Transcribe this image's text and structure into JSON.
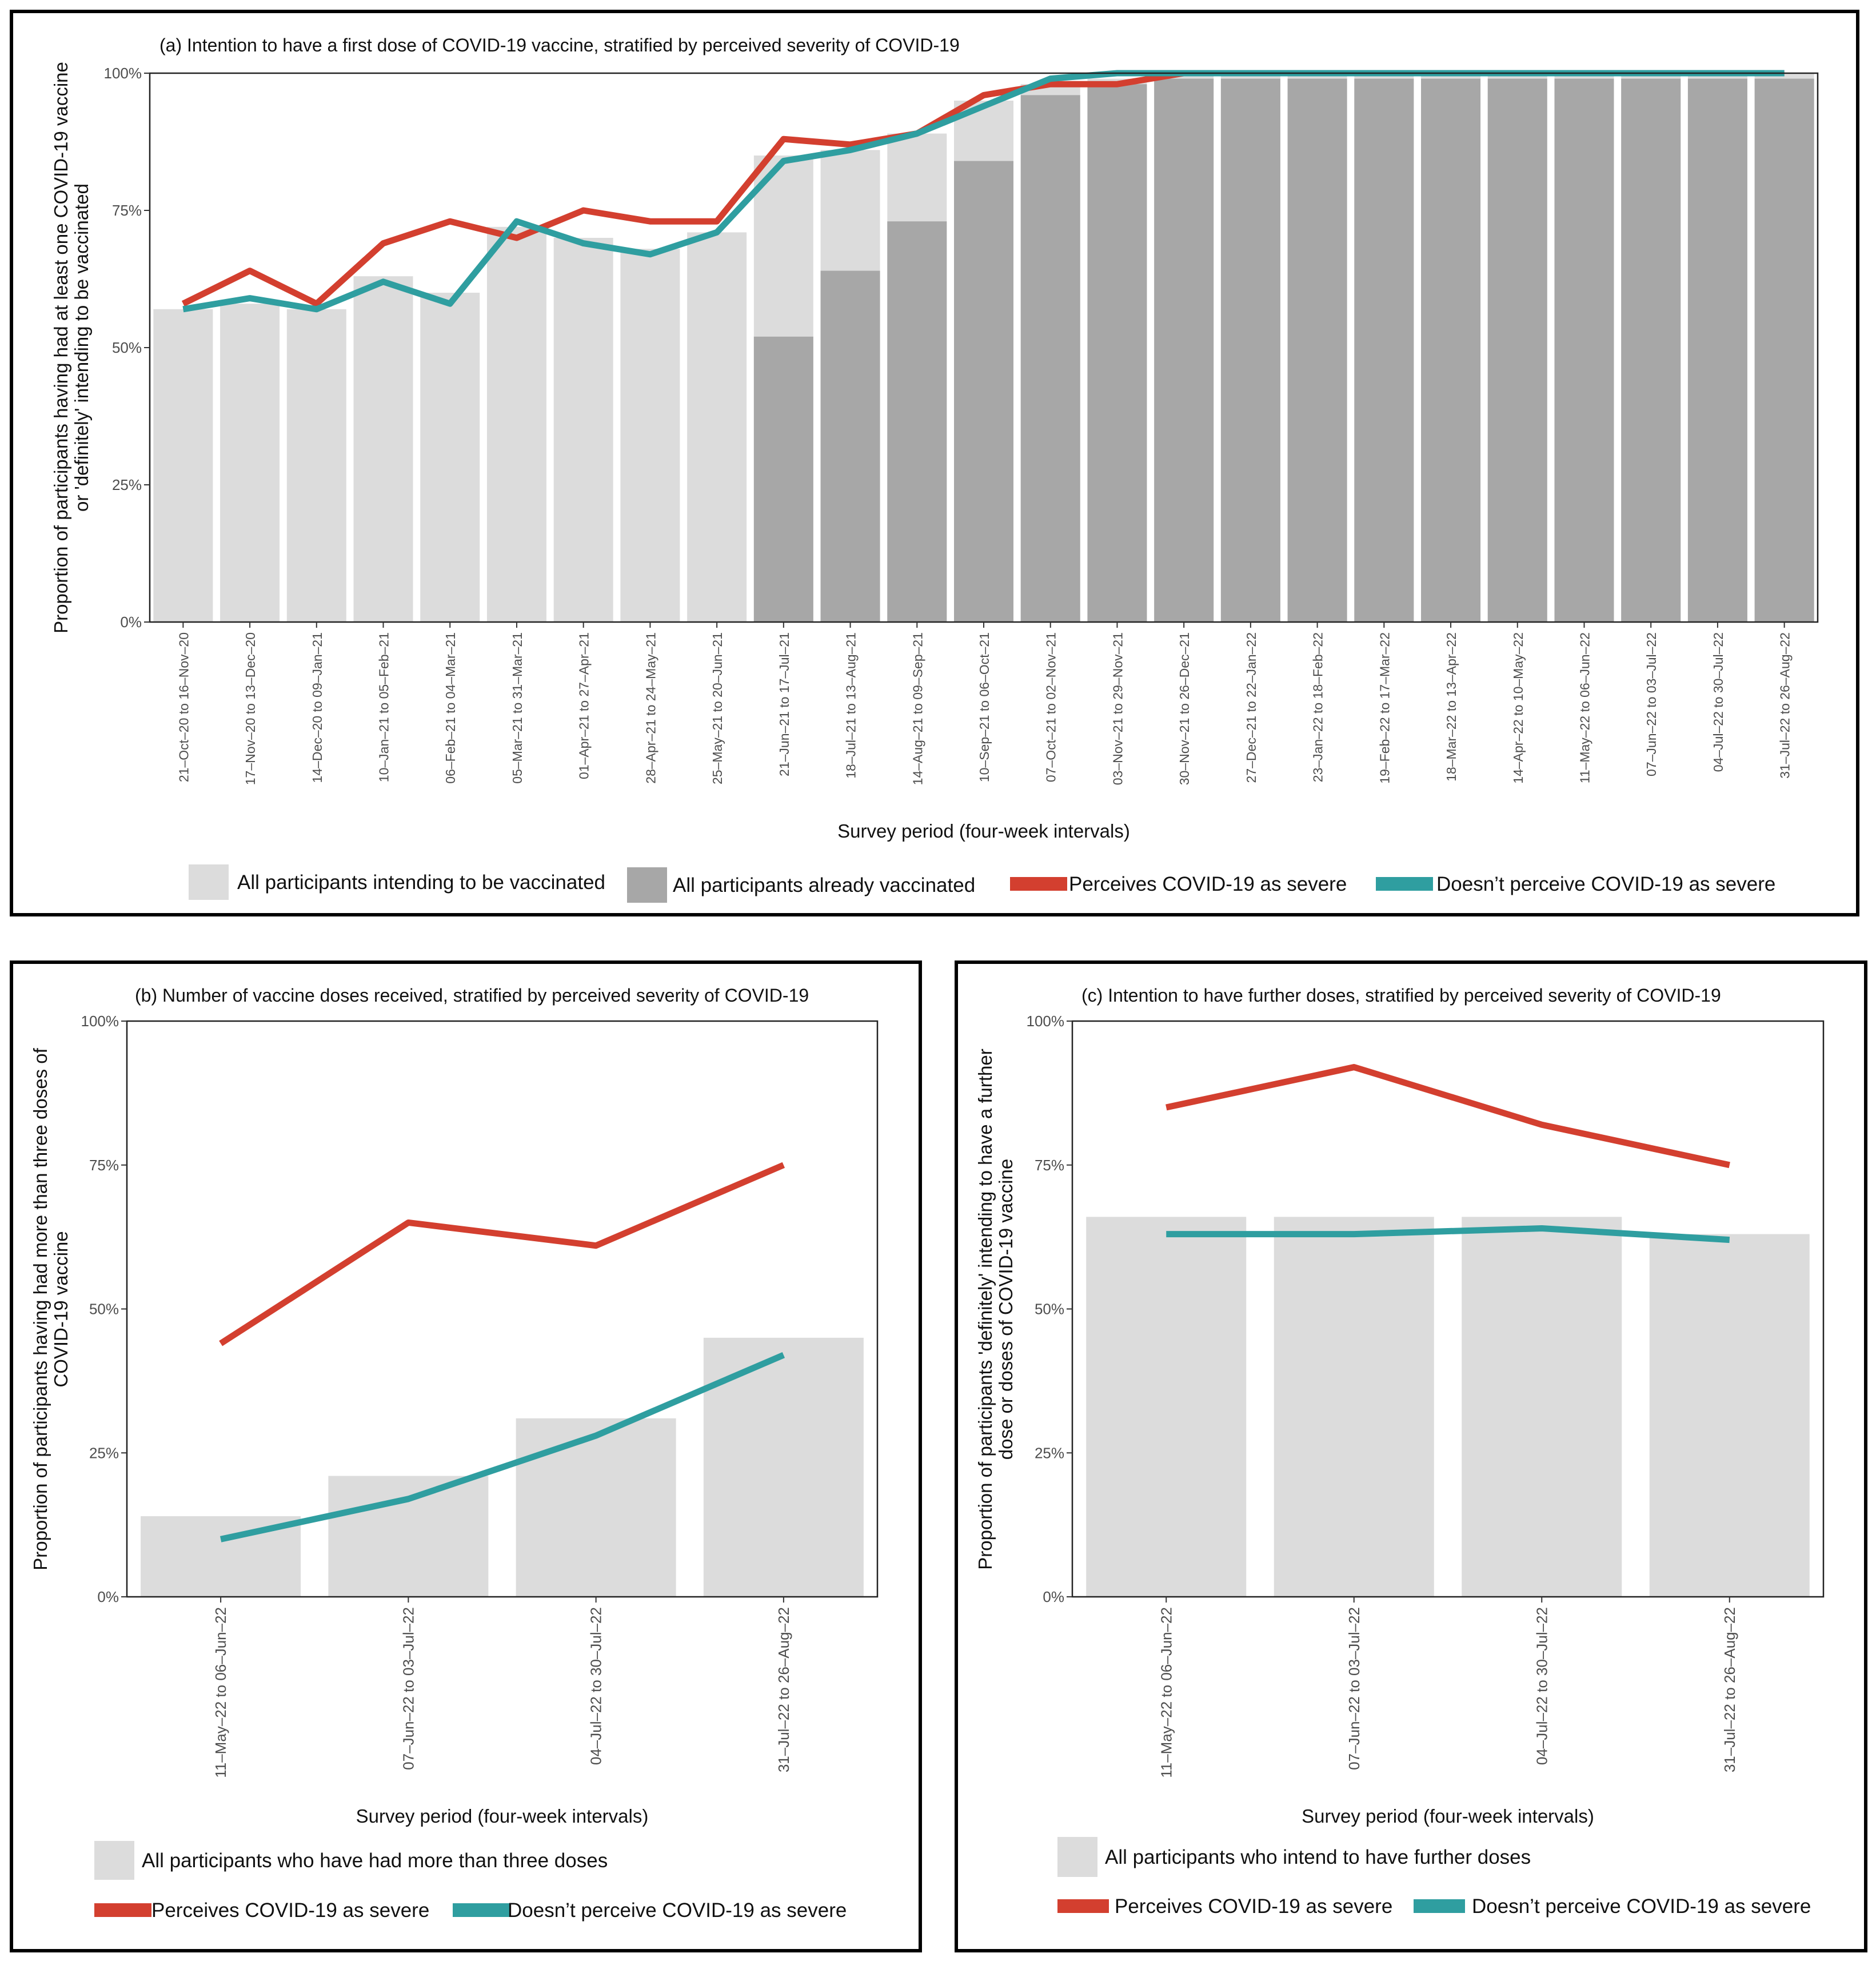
{
  "colors": {
    "severe": "#d33f2f",
    "not_severe": "#2f9ea0",
    "intending": "#dcdcdc",
    "vaccinated": "#a7a7a7",
    "axis": "#333333",
    "tick_text": "#4d4d4d"
  },
  "y_ticks": [
    "0%",
    "25%",
    "50%",
    "75%",
    "100%"
  ],
  "chart_data": [
    {
      "id": "a",
      "type": "bar",
      "title": "(a) Intention to have a first dose of COVID-19 vaccine, stratified by perceived severity of COVID-19",
      "xlabel": "Survey period (four-week intervals)",
      "ylabel": [
        "Proportion of participants having had at least one COVID-19 vaccine",
        "or 'definitely' intending to be vaccinated"
      ],
      "ylim": [
        0,
        100
      ],
      "categories": [
        "21–Oct–20 to 16–Nov–20",
        "17–Nov–20 to 13–Dec–20",
        "14–Dec–20 to 09–Jan–21",
        "10–Jan–21 to 05–Feb–21",
        "06–Feb–21 to 04–Mar–21",
        "05–Mar–21 to 31–Mar–21",
        "01–Apr–21 to 27–Apr–21",
        "28–Apr–21 to 24–May–21",
        "25–May–21 to 20–Jun–21",
        "21–Jun–21 to 17–Jul–21",
        "18–Jul–21 to 13–Aug–21",
        "14–Aug–21 to 09–Sep–21",
        "10–Sep–21 to 06–Oct–21",
        "07–Oct–21 to 02–Nov–21",
        "03–Nov–21 to 29–Nov–21",
        "30–Nov–21 to 26–Dec–21",
        "27–Dec–21 to 22–Jan–22",
        "23–Jan–22 to 18–Feb–22",
        "19–Feb–22 to 17–Mar–22",
        "18–Mar–22 to 13–Apr–22",
        "14–Apr–22 to 10–May–22",
        "11–May–22 to 06–Jun–22",
        "07–Jun–22 to 03–Jul–22",
        "04–Jul–22 to 30–Jul–22",
        "31–Jul–22 to 26–Aug–22"
      ],
      "series": [
        {
          "name": "All participants intending to be vaccinated",
          "kind": "bar",
          "color": "#dcdcdc",
          "values": [
            57,
            58,
            57,
            63,
            60,
            72,
            70,
            68,
            71,
            85,
            86,
            89,
            95,
            98,
            99,
            100,
            100,
            100,
            100,
            100,
            100,
            100,
            100,
            100,
            100
          ]
        },
        {
          "name": "All participants already vaccinated",
          "kind": "bar",
          "color": "#a7a7a7",
          "values": [
            0,
            0,
            0,
            0,
            0,
            0,
            0,
            0,
            0,
            52,
            64,
            73,
            84,
            96,
            98,
            99,
            99,
            99,
            99,
            99,
            99,
            99,
            99,
            99,
            99
          ]
        },
        {
          "name": "Perceives COVID-19 as severe",
          "kind": "line",
          "color": "#d33f2f",
          "values": [
            58,
            64,
            58,
            69,
            73,
            70,
            75,
            73,
            73,
            88,
            87,
            89,
            96,
            98,
            98,
            100,
            100,
            100,
            100,
            100,
            100,
            100,
            100,
            100,
            100
          ]
        },
        {
          "name": "Doesn’t perceive COVID-19 as severe",
          "kind": "line",
          "color": "#2f9ea0",
          "values": [
            57,
            59,
            57,
            62,
            58,
            73,
            69,
            67,
            71,
            84,
            86,
            89,
            94,
            99,
            100,
            100,
            100,
            100,
            100,
            100,
            100,
            100,
            100,
            100,
            100
          ]
        }
      ],
      "legend": [
        {
          "label": "All participants intending to be vaccinated",
          "kind": "box",
          "color": "#dcdcdc"
        },
        {
          "label": "All participants already vaccinated",
          "kind": "box",
          "color": "#a7a7a7"
        },
        {
          "label": "Perceives COVID-19 as severe",
          "kind": "line",
          "color": "#d33f2f"
        },
        {
          "label": "Doesn’t perceive COVID-19 as severe",
          "kind": "line",
          "color": "#2f9ea0"
        }
      ]
    },
    {
      "id": "b",
      "type": "bar",
      "title": "(b) Number of vaccine doses received, stratified by perceived severity of COVID-19",
      "xlabel": "Survey period (four-week intervals)",
      "ylabel": [
        "Proportion of participants having had more than three doses of",
        "COVID-19 vaccine"
      ],
      "ylim": [
        0,
        100
      ],
      "categories": [
        "11–May–22 to 06–Jun–22",
        "07–Jun–22 to 03–Jul–22",
        "04–Jul–22 to 30–Jul–22",
        "31–Jul–22 to 26–Aug–22"
      ],
      "series": [
        {
          "name": "All participants who have had more than three doses",
          "kind": "bar",
          "color": "#dcdcdc",
          "values": [
            14,
            21,
            31,
            45
          ]
        },
        {
          "name": "Perceives COVID-19 as severe",
          "kind": "line",
          "color": "#d33f2f",
          "values": [
            44,
            65,
            61,
            75
          ]
        },
        {
          "name": "Doesn’t perceive COVID-19 as severe",
          "kind": "line",
          "color": "#2f9ea0",
          "values": [
            10,
            17,
            28,
            42
          ]
        }
      ],
      "legend": [
        {
          "label": "All participants who have had more than three doses",
          "kind": "box",
          "color": "#dcdcdc"
        },
        {
          "label": "Perceives COVID-19 as severe",
          "kind": "line",
          "color": "#d33f2f"
        },
        {
          "label": "Doesn’t perceive COVID-19 as severe",
          "kind": "line",
          "color": "#2f9ea0"
        }
      ]
    },
    {
      "id": "c",
      "type": "bar",
      "title": "(c) Intention to have further doses, stratified by perceived severity of COVID-19",
      "xlabel": "Survey period (four-week intervals)",
      "ylabel": [
        "Proportion of participants 'definitely' intending to have a further",
        "dose or doses of COVID-19 vaccine"
      ],
      "ylim": [
        0,
        100
      ],
      "categories": [
        "11–May–22 to 06–Jun–22",
        "07–Jun–22 to 03–Jul–22",
        "04–Jul–22 to 30–Jul–22",
        "31–Jul–22 to 26–Aug–22"
      ],
      "series": [
        {
          "name": "All participants who intend to have further doses",
          "kind": "bar",
          "color": "#dcdcdc",
          "values": [
            66,
            66,
            66,
            63
          ]
        },
        {
          "name": "Perceives COVID-19 as severe",
          "kind": "line",
          "color": "#d33f2f",
          "values": [
            85,
            92,
            82,
            75
          ]
        },
        {
          "name": "Doesn’t perceive COVID-19 as severe",
          "kind": "line",
          "color": "#2f9ea0",
          "values": [
            63,
            63,
            64,
            62
          ]
        }
      ],
      "legend": [
        {
          "label": "All participants who intend to have further doses",
          "kind": "box",
          "color": "#dcdcdc"
        },
        {
          "label": "Perceives COVID-19 as severe",
          "kind": "line",
          "color": "#d33f2f"
        },
        {
          "label": "Doesn’t perceive COVID-19 as severe",
          "kind": "line",
          "color": "#2f9ea0"
        }
      ]
    }
  ]
}
